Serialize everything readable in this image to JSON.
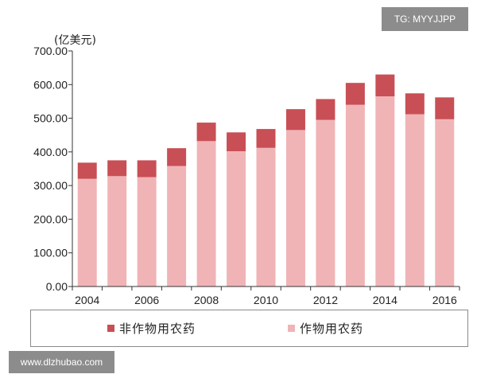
{
  "watermarks": {
    "top_right": "TG: MYYJJPP",
    "bottom_left": "www.dlzhubao.com"
  },
  "colors": {
    "crop": "#f0b4b6",
    "noncrop": "#c84f55",
    "axis": "#333333",
    "legend_border": "#8a8a8a"
  },
  "chart_data": {
    "type": "bar",
    "stacked": true,
    "unit_label": "(亿美元)",
    "categories": [
      "2004",
      "2005",
      "2006",
      "2007",
      "2008",
      "2009",
      "2010",
      "2011",
      "2012",
      "2013",
      "2014",
      "2015",
      "2016"
    ],
    "x_tick_labels": [
      "2004",
      "2006",
      "2008",
      "2010",
      "2012",
      "2014",
      "2016"
    ],
    "y_tick_labels": [
      "0.00",
      "100.00",
      "200.00",
      "300.00",
      "400.00",
      "500.00",
      "600.00",
      "700.00"
    ],
    "ylim": [
      0,
      700
    ],
    "grid": false,
    "legend_position": "bottom",
    "series": [
      {
        "name": "作物用农药",
        "color": "#f0b4b6",
        "values": [
          320,
          328,
          325,
          358,
          432,
          402,
          412,
          465,
          495,
          540,
          565,
          512,
          497
        ]
      },
      {
        "name": "非作物用农药",
        "color": "#c84f55",
        "values": [
          48,
          47,
          50,
          53,
          55,
          56,
          56,
          62,
          62,
          65,
          65,
          62,
          65
        ]
      }
    ]
  },
  "legend": {
    "items": [
      {
        "label": "非作物用农药",
        "color": "#c84f55"
      },
      {
        "label": "作物用农药",
        "color": "#f0b4b6"
      }
    ]
  }
}
